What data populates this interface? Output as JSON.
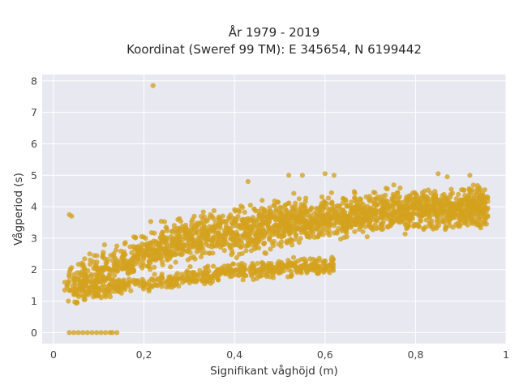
{
  "chart_data": {
    "type": "scatter",
    "title_line1": "År 1979 - 2019",
    "title_line2": "Koordinat (Sweref 99 TM): E 345654, N 6199442",
    "xlabel": "Signifikant våghöjd (m)",
    "ylabel": "Vågperiod (s)",
    "xlim": [
      -0.025,
      1.0
    ],
    "ylim": [
      -0.35,
      8.2
    ],
    "x_ticks": [
      0,
      0.2,
      0.4,
      0.6,
      0.8,
      1
    ],
    "x_tick_labels": [
      "0",
      "0,2",
      "0,4",
      "0,6",
      "0,8",
      "1"
    ],
    "y_ticks": [
      0,
      1,
      2,
      3,
      4,
      5,
      6,
      7,
      8
    ],
    "y_tick_labels": [
      "0",
      "1",
      "2",
      "3",
      "4",
      "5",
      "6",
      "7",
      "8"
    ],
    "grid": true,
    "legend": "none",
    "colors": {
      "marker": "#d4a21e",
      "plot_bg": "#e8e8f0",
      "grid": "#ffffff"
    },
    "points": [
      [
        0.22,
        7.85
      ],
      [
        0.035,
        3.75
      ],
      [
        0.04,
        3.7
      ],
      [
        0.92,
        5.0
      ],
      [
        0.85,
        5.05
      ],
      [
        0.87,
        4.95
      ],
      [
        0.6,
        5.05
      ],
      [
        0.62,
        5.0
      ],
      [
        0.55,
        5.0
      ],
      [
        0.52,
        5.0
      ],
      [
        0.43,
        4.8
      ],
      [
        0.96,
        3.95
      ],
      [
        0.94,
        4.1
      ],
      [
        0.9,
        4.0
      ],
      [
        0.88,
        4.1
      ],
      [
        0.93,
        3.9
      ],
      [
        0.025,
        1.6
      ],
      [
        0.03,
        1.5
      ],
      [
        0.025,
        1.35
      ],
      [
        0.03,
        1.45
      ],
      [
        0.035,
        0.0
      ],
      [
        0.045,
        0.0
      ],
      [
        0.055,
        0.0
      ],
      [
        0.065,
        0.0
      ],
      [
        0.075,
        0.0
      ],
      [
        0.085,
        0.0
      ],
      [
        0.095,
        0.0
      ],
      [
        0.105,
        0.0
      ],
      [
        0.115,
        0.0
      ],
      [
        0.125,
        0.0
      ],
      [
        0.13,
        0.0
      ],
      [
        0.14,
        0.0
      ],
      [
        0.55,
        2.1
      ],
      [
        0.48,
        2.05
      ],
      [
        0.5,
        2.1
      ],
      [
        0.42,
        1.95
      ],
      [
        0.56,
        1.9
      ],
      [
        0.52,
        2.0
      ],
      [
        0.58,
        2.1
      ],
      [
        0.6,
        2.05
      ],
      [
        0.08,
        2.5
      ],
      [
        0.09,
        2.45
      ],
      [
        0.11,
        2.55
      ],
      [
        0.14,
        2.75
      ],
      [
        0.8,
        4.4
      ],
      [
        0.82,
        4.5
      ],
      [
        0.84,
        4.35
      ],
      [
        0.78,
        4.3
      ],
      [
        0.86,
        4.2
      ],
      [
        0.76,
        4.45
      ]
    ],
    "dense_bands": [
      {
        "x_from": 0.03,
        "x_to": 0.96,
        "center_at": [
          [
            0.03,
            1.55
          ],
          [
            0.1,
            1.85
          ],
          [
            0.2,
            2.55
          ],
          [
            0.3,
            3.0
          ],
          [
            0.4,
            3.25
          ],
          [
            0.5,
            3.45
          ],
          [
            0.6,
            3.65
          ],
          [
            0.7,
            3.8
          ],
          [
            0.8,
            3.9
          ],
          [
            0.96,
            4.0
          ]
        ],
        "spread": 0.45,
        "weight": 0.8
      },
      {
        "x_from": 0.05,
        "x_to": 0.62,
        "center_at": [
          [
            0.05,
            1.2
          ],
          [
            0.2,
            1.55
          ],
          [
            0.3,
            1.75
          ],
          [
            0.4,
            1.95
          ],
          [
            0.5,
            2.05
          ],
          [
            0.62,
            2.15
          ]
        ],
        "spread": 0.18,
        "weight": 0.2
      }
    ]
  }
}
